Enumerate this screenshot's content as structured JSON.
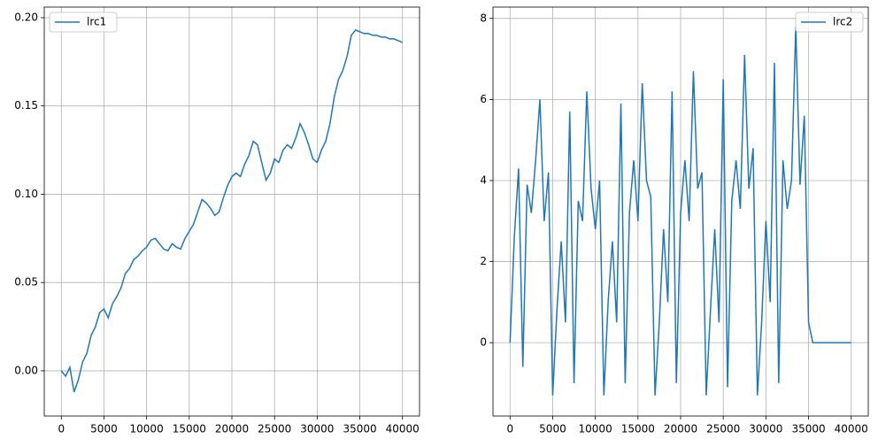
{
  "chart_data": [
    {
      "type": "line",
      "legend": "upper left",
      "grid": true,
      "x": [
        0,
        500,
        1000,
        1500,
        2000,
        2500,
        3000,
        3500,
        4000,
        4500,
        5000,
        5500,
        6000,
        6500,
        7000,
        7500,
        8000,
        8500,
        9000,
        9500,
        10000,
        10500,
        11000,
        11500,
        12000,
        12500,
        13000,
        13500,
        14000,
        14500,
        15000,
        15500,
        16000,
        16500,
        17000,
        17500,
        18000,
        18500,
        19000,
        19500,
        20000,
        20500,
        21000,
        21500,
        22000,
        22500,
        23000,
        23500,
        24000,
        24500,
        25000,
        25500,
        26000,
        26500,
        27000,
        27500,
        28000,
        28500,
        29000,
        29500,
        30000,
        30500,
        31000,
        31500,
        32000,
        32500,
        33000,
        33500,
        34000,
        34500,
        35000,
        35500,
        36000,
        36500,
        37000,
        37500,
        38000,
        38500,
        39000,
        39500,
        40000
      ],
      "series": [
        {
          "name": "lrc1",
          "color": "#1f77b4",
          "values": [
            0,
            -0.003,
            0.002,
            -0.012,
            -0.005,
            0.005,
            0.01,
            0.02,
            0.025,
            0.033,
            0.035,
            0.03,
            0.038,
            0.042,
            0.047,
            0.055,
            0.058,
            0.063,
            0.065,
            0.068,
            0.07,
            0.074,
            0.075,
            0.072,
            0.069,
            0.068,
            0.072,
            0.07,
            0.069,
            0.075,
            0.079,
            0.083,
            0.09,
            0.097,
            0.095,
            0.092,
            0.088,
            0.09,
            0.098,
            0.105,
            0.11,
            0.112,
            0.11,
            0.117,
            0.122,
            0.13,
            0.128,
            0.118,
            0.108,
            0.112,
            0.12,
            0.118,
            0.125,
            0.128,
            0.126,
            0.132,
            0.14,
            0.135,
            0.128,
            0.12,
            0.118,
            0.125,
            0.13,
            0.14,
            0.155,
            0.165,
            0.17,
            0.178,
            0.19,
            0.193,
            0.192,
            0.191,
            0.191,
            0.19,
            0.19,
            0.189,
            0.189,
            0.188,
            0.188,
            0.187,
            0.186
          ]
        }
      ],
      "xlim": [
        -2000,
        42000
      ],
      "xticks": [
        0,
        5000,
        10000,
        15000,
        20000,
        25000,
        30000,
        35000,
        40000
      ],
      "ylim": [
        -0.0256,
        0.206
      ],
      "yticks": [
        {
          "value": 0,
          "label": "0.00"
        },
        {
          "value": 0.05,
          "label": "0.05"
        },
        {
          "value": 0.1,
          "label": "0.10"
        },
        {
          "value": 0.15,
          "label": "0.15"
        },
        {
          "value": 0.2,
          "label": "0.20"
        }
      ]
    },
    {
      "type": "line",
      "legend": "upper right",
      "grid": true,
      "x": [
        0,
        500,
        1000,
        1500,
        2000,
        2500,
        3000,
        3500,
        4000,
        4500,
        5000,
        5500,
        6000,
        6500,
        7000,
        7500,
        8000,
        8500,
        9000,
        9500,
        10000,
        10500,
        11000,
        11500,
        12000,
        12500,
        13000,
        13500,
        14000,
        14500,
        15000,
        15500,
        16000,
        16500,
        17000,
        17500,
        18000,
        18500,
        19000,
        19500,
        20000,
        20500,
        21000,
        21500,
        22000,
        22500,
        23000,
        23500,
        24000,
        24500,
        25000,
        25500,
        26000,
        26500,
        27000,
        27500,
        28000,
        28500,
        29000,
        29500,
        30000,
        30500,
        31000,
        31500,
        32000,
        32500,
        33000,
        33500,
        34000,
        34500,
        35000,
        35500,
        36000,
        36500,
        37000,
        37500,
        38000,
        38500,
        39000,
        39500,
        40000
      ],
      "series": [
        {
          "name": "lrc2",
          "color": "#1f77b4",
          "values": [
            0,
            2.6,
            4.3,
            -0.6,
            3.9,
            3.2,
            4.5,
            6.0,
            3.0,
            4.2,
            -1.3,
            0.8,
            2.5,
            0.5,
            5.7,
            -1.0,
            3.5,
            3.0,
            6.2,
            3.8,
            2.8,
            4.0,
            -1.3,
            1.0,
            2.5,
            0.5,
            5.9,
            -1.0,
            3.2,
            4.5,
            3.0,
            6.4,
            4.0,
            3.6,
            -1.3,
            0.5,
            2.8,
            1.0,
            6.2,
            -1.0,
            3.2,
            4.5,
            3.0,
            6.7,
            3.8,
            4.2,
            -1.3,
            0.8,
            2.8,
            0.5,
            6.5,
            -1.1,
            3.5,
            4.5,
            3.3,
            7.1,
            3.8,
            4.8,
            -1.3,
            0.5,
            3.0,
            1.0,
            6.9,
            -1.0,
            4.5,
            3.3,
            4.0,
            7.8,
            3.9,
            5.6,
            0.5,
            0,
            0,
            0,
            0,
            0,
            0,
            0,
            0,
            0,
            0
          ]
        }
      ],
      "xlim": [
        -2000,
        42000
      ],
      "xticks": [
        0,
        5000,
        10000,
        15000,
        20000,
        25000,
        30000,
        35000,
        40000
      ],
      "ylim": [
        -1.81,
        8.28
      ],
      "yticks": [
        0,
        2,
        4,
        6,
        8
      ]
    }
  ]
}
